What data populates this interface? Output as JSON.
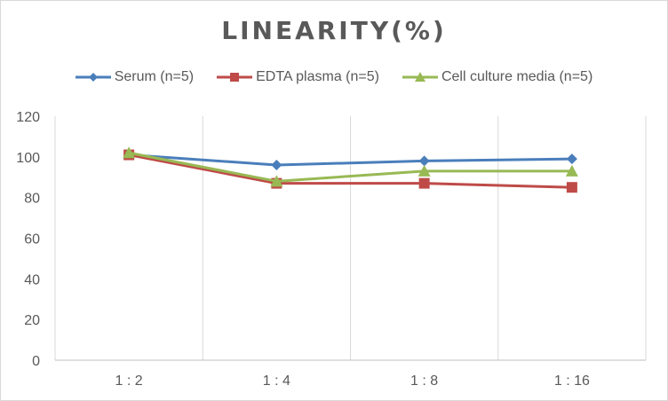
{
  "chart_data": {
    "type": "line",
    "title": "LINEARITY(%)",
    "xlabel": "",
    "ylabel": "",
    "categories": [
      "1:2",
      "1:4",
      "1:8",
      "1:16"
    ],
    "ylim": [
      0,
      120
    ],
    "yticks": [
      0,
      20,
      40,
      60,
      80,
      100,
      120
    ],
    "grid": "vertical",
    "legend": "top",
    "series": [
      {
        "name": "Serum (n=5)",
        "values": [
          101,
          96,
          98,
          99
        ],
        "color": "#4a7ebb",
        "marker": "diamond"
      },
      {
        "name": "EDTA plasma (n=5)",
        "values": [
          101,
          87,
          87,
          85
        ],
        "color": "#be4b48",
        "marker": "square"
      },
      {
        "name": "Cell culture media (n=5)",
        "values": [
          102,
          88,
          93,
          93
        ],
        "color": "#98b954",
        "marker": "triangle"
      }
    ]
  }
}
